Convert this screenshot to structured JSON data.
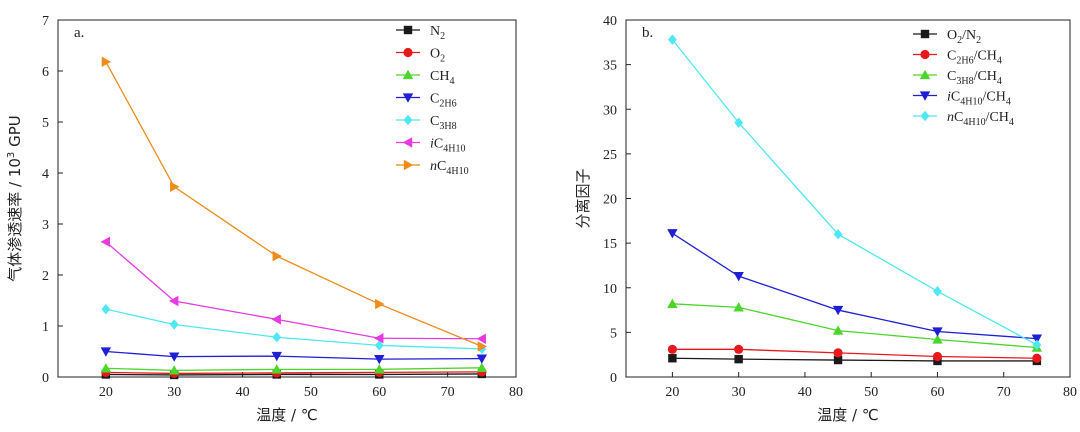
{
  "chart_data": [
    {
      "type": "line",
      "panel_label": "a.",
      "xlabel": "温度 / ℃",
      "ylabel": "气体渗透速率 / 10³ GPU",
      "xlim": [
        13,
        80
      ],
      "ylim": [
        0,
        7
      ],
      "xticks": [
        20,
        30,
        40,
        50,
        60,
        70,
        80
      ],
      "yticks": [
        0,
        1,
        2,
        3,
        4,
        5,
        6,
        7
      ],
      "legend_position": "top-right",
      "x": [
        20,
        30,
        45,
        60,
        75
      ],
      "series": [
        {
          "name": "N2",
          "legend_label": "N_2",
          "color": "#1a1a1a",
          "marker": "square",
          "values": [
            0.05,
            0.04,
            0.05,
            0.05,
            0.06
          ]
        },
        {
          "name": "O2",
          "legend_label": "O_2",
          "color": "#e8191c",
          "marker": "circle",
          "values": [
            0.09,
            0.07,
            0.08,
            0.09,
            0.1
          ]
        },
        {
          "name": "CH4",
          "legend_label": "CH_4",
          "color": "#4cd62b",
          "marker": "triangle-up",
          "values": [
            0.17,
            0.13,
            0.15,
            0.15,
            0.18
          ]
        },
        {
          "name": "C2H6",
          "legend_label": "C_2H_6",
          "color": "#1f1fd6",
          "marker": "triangle-down",
          "values": [
            0.5,
            0.4,
            0.41,
            0.35,
            0.36
          ]
        },
        {
          "name": "C3H8",
          "legend_label": "C_3H_8",
          "color": "#4fe8f2",
          "marker": "diamond",
          "values": [
            1.33,
            1.03,
            0.78,
            0.62,
            0.55
          ]
        },
        {
          "name": "iC4H10",
          "legend_label": "~i~C_4H_10",
          "color": "#e83ae3",
          "marker": "triangle-left",
          "values": [
            2.65,
            1.49,
            1.13,
            0.76,
            0.75
          ]
        },
        {
          "name": "nC4H10",
          "legend_label": "~n~C_4H_10",
          "color": "#ef8c1a",
          "marker": "triangle-right",
          "values": [
            6.18,
            3.73,
            2.37,
            1.43,
            0.6
          ]
        }
      ]
    },
    {
      "type": "line",
      "panel_label": "b.",
      "xlabel": "温度 / ℃",
      "ylabel": "分离因子",
      "xlim": [
        13,
        80
      ],
      "ylim": [
        0,
        40
      ],
      "xticks": [
        20,
        30,
        40,
        50,
        60,
        70,
        80
      ],
      "yticks": [
        0,
        5,
        10,
        15,
        20,
        25,
        30,
        35,
        40
      ],
      "legend_position": "top-right",
      "x": [
        20,
        30,
        45,
        60,
        75
      ],
      "series": [
        {
          "name": "O2/N2",
          "legend_label": "O_2/N_2",
          "color": "#1a1a1a",
          "marker": "square",
          "values": [
            2.1,
            2.0,
            1.9,
            1.8,
            1.8
          ]
        },
        {
          "name": "C2H6/CH4",
          "legend_label": "C_2H_6/CH_4",
          "color": "#e8191c",
          "marker": "circle",
          "values": [
            3.1,
            3.1,
            2.7,
            2.3,
            2.1
          ]
        },
        {
          "name": "C3H8/CH4",
          "legend_label": "C_3H_8/CH_4",
          "color": "#4cd62b",
          "marker": "triangle-up",
          "values": [
            8.2,
            7.8,
            5.2,
            4.2,
            3.3
          ]
        },
        {
          "name": "iC4H10/CH4",
          "legend_label": "~i~C_4H_10/CH_4",
          "color": "#1f1fd6",
          "marker": "triangle-down",
          "values": [
            16.1,
            11.3,
            7.5,
            5.1,
            4.3
          ]
        },
        {
          "name": "nC4H10/CH4",
          "legend_label": "~n~C_4H_10/CH_4",
          "color": "#4fe8f2",
          "marker": "diamond",
          "values": [
            37.8,
            28.5,
            16.0,
            9.6,
            3.6
          ]
        }
      ]
    }
  ]
}
